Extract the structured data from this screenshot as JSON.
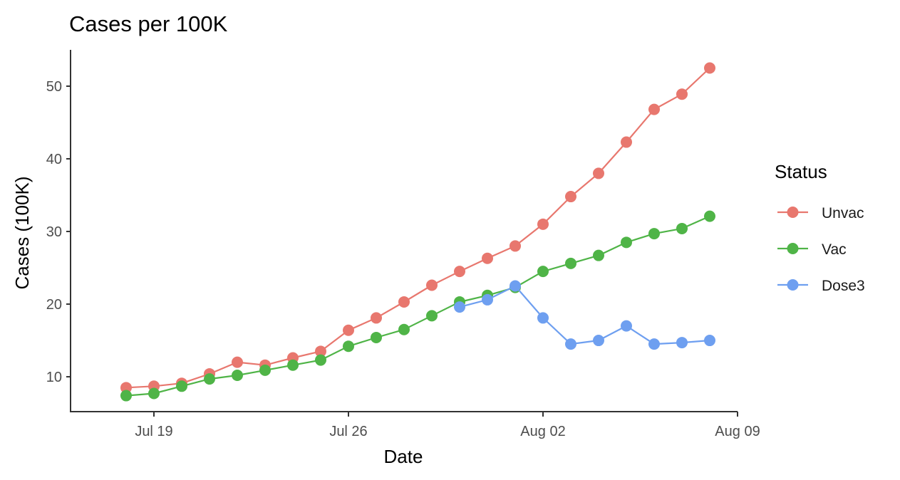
{
  "chart_data": {
    "type": "line",
    "title": "Cases per 100K",
    "xlabel": "Date",
    "ylabel": "Cases (100K)",
    "x_ticks": [
      "Jul 19",
      "Jul 26",
      "Aug 02",
      "Aug 09"
    ],
    "y_ticks": [
      10,
      20,
      30,
      40,
      50
    ],
    "xlim": [
      "2021-07-16",
      "2021-08-09"
    ],
    "ylim": [
      5.2,
      55
    ],
    "grid": false,
    "legend": {
      "title": "Status",
      "position": "right"
    },
    "series": [
      {
        "name": "Unvac",
        "color": "#e8776e",
        "x": [
          "2021-07-18",
          "2021-07-19",
          "2021-07-20",
          "2021-07-21",
          "2021-07-22",
          "2021-07-23",
          "2021-07-24",
          "2021-07-25",
          "2021-07-26",
          "2021-07-27",
          "2021-07-28",
          "2021-07-29",
          "2021-07-30",
          "2021-07-31",
          "2021-08-01",
          "2021-08-02",
          "2021-08-03",
          "2021-08-04",
          "2021-08-05",
          "2021-08-06",
          "2021-08-07",
          "2021-08-08"
        ],
        "y": [
          8.5,
          8.7,
          9.1,
          10.4,
          12.0,
          11.6,
          12.6,
          13.5,
          16.4,
          18.1,
          20.3,
          22.6,
          24.5,
          26.3,
          28.0,
          31.0,
          34.8,
          38.0,
          42.3,
          46.8,
          48.9,
          52.5
        ]
      },
      {
        "name": "Vac",
        "color": "#4fb447",
        "x": [
          "2021-07-18",
          "2021-07-19",
          "2021-07-20",
          "2021-07-21",
          "2021-07-22",
          "2021-07-23",
          "2021-07-24",
          "2021-07-25",
          "2021-07-26",
          "2021-07-27",
          "2021-07-28",
          "2021-07-29",
          "2021-07-30",
          "2021-07-31",
          "2021-08-01",
          "2021-08-02",
          "2021-08-03",
          "2021-08-04",
          "2021-08-05",
          "2021-08-06",
          "2021-08-07",
          "2021-08-08"
        ],
        "y": [
          7.4,
          7.7,
          8.7,
          9.7,
          10.2,
          10.9,
          11.6,
          12.3,
          14.2,
          15.4,
          16.5,
          18.4,
          20.3,
          21.2,
          22.3,
          24.5,
          25.6,
          26.7,
          28.5,
          29.7,
          30.4,
          32.1
        ]
      },
      {
        "name": "Dose3",
        "color": "#6e9ff0",
        "x": [
          "2021-07-30",
          "2021-07-31",
          "2021-08-01",
          "2021-08-02",
          "2021-08-03",
          "2021-08-04",
          "2021-08-05",
          "2021-08-06",
          "2021-08-07",
          "2021-08-08"
        ],
        "y": [
          19.6,
          20.6,
          22.5,
          18.1,
          14.5,
          15.0,
          17.0,
          14.5,
          14.7,
          15.0
        ]
      }
    ]
  }
}
